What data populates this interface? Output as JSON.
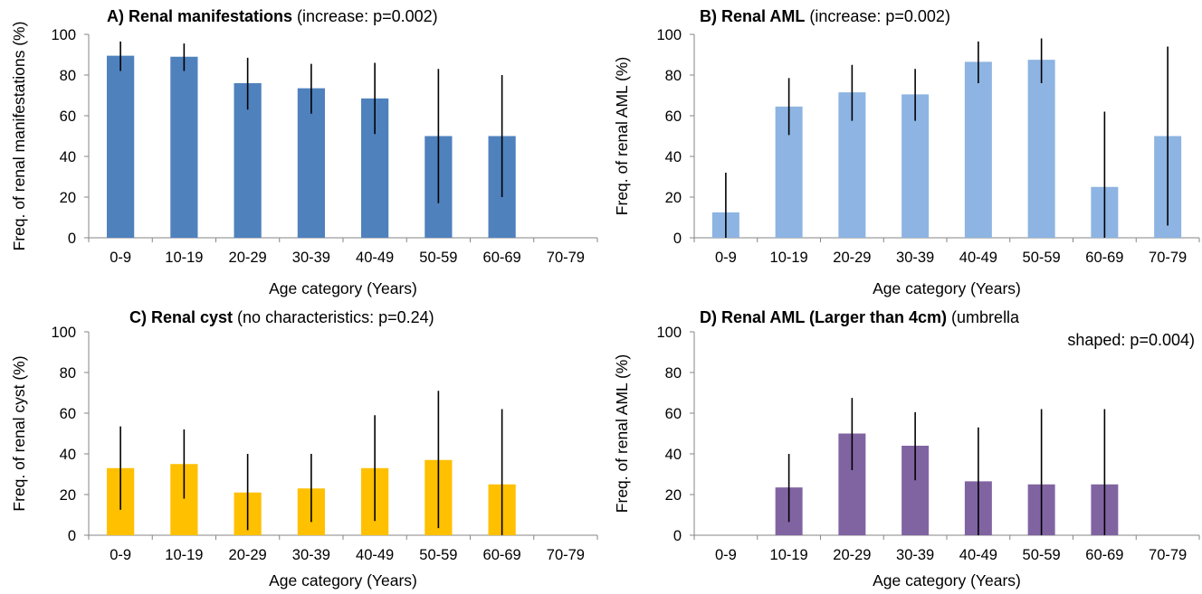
{
  "chart_data": [
    {
      "type": "bar",
      "title_bold": "A) Renal manifestations",
      "title_rest": " (increase: p=0.002)",
      "xlabel": "Age category (Years)",
      "ylabel": "Freq. of renal manifestations (%)",
      "ylim": [
        0,
        100
      ],
      "yticks": [
        0,
        20,
        40,
        60,
        80,
        100
      ],
      "categories": [
        "0-9",
        "10-19",
        "20-29",
        "30-39",
        "40-49",
        "50-59",
        "60-69",
        "70-79"
      ],
      "values": [
        89.5,
        89,
        76,
        73.5,
        68.5,
        50,
        50,
        null
      ],
      "error_high": [
        96.5,
        95.5,
        88.5,
        85.5,
        86,
        83,
        80,
        null
      ],
      "error_low": [
        82,
        82,
        63,
        61,
        51,
        17,
        20,
        null
      ],
      "color": "#4f81bd",
      "grid": false
    },
    {
      "type": "bar",
      "title_bold": "B) Renal AML",
      "title_rest": " (increase: p=0.002)",
      "xlabel": "Age category (Years)",
      "ylabel": "Freq. of renal AML (%)",
      "ylim": [
        0,
        100
      ],
      "yticks": [
        0,
        20,
        40,
        60,
        80,
        100
      ],
      "categories": [
        "0-9",
        "10-19",
        "20-29",
        "30-39",
        "40-49",
        "50-59",
        "60-69",
        "70-79"
      ],
      "values": [
        12.5,
        64.5,
        71.5,
        70.5,
        86.5,
        87.5,
        25,
        50
      ],
      "error_high": [
        32,
        78.5,
        85,
        83,
        96.5,
        98,
        62,
        94
      ],
      "error_low": [
        0,
        50.5,
        57.5,
        57.5,
        76,
        76,
        0,
        6
      ],
      "color": "#8db4e2",
      "grid": false
    },
    {
      "type": "bar",
      "title_bold": "C) Renal cyst",
      "title_rest": " (no characteristics: p=0.24)",
      "xlabel": "Age category (Years)",
      "ylabel": "Freq. of renal cyst (%)",
      "ylim": [
        0,
        100
      ],
      "yticks": [
        0,
        20,
        40,
        60,
        80,
        100
      ],
      "categories": [
        "0-9",
        "10-19",
        "20-29",
        "30-39",
        "40-49",
        "50-59",
        "60-69",
        "70-79"
      ],
      "values": [
        33,
        35,
        21,
        23,
        33,
        37,
        25,
        null
      ],
      "error_high": [
        53.5,
        52,
        40,
        40,
        59,
        71,
        62,
        null
      ],
      "error_low": [
        12.5,
        18,
        2.5,
        6.5,
        7,
        3.5,
        0,
        null
      ],
      "color": "#ffc000",
      "grid": false
    },
    {
      "type": "bar",
      "title_bold": "D) Renal AML (Larger than 4cm)",
      "title_rest": " (umbrella",
      "title_line2": "shaped: p=0.004)",
      "xlabel": "Age category (Years)",
      "ylabel": "Freq. of renal AML (%)",
      "ylim": [
        0,
        100
      ],
      "yticks": [
        0,
        20,
        40,
        60,
        80,
        100
      ],
      "categories": [
        "0-9",
        "10-19",
        "20-29",
        "30-39",
        "40-49",
        "50-59",
        "60-69",
        "70-79"
      ],
      "values": [
        null,
        23.5,
        50,
        44,
        26.5,
        25,
        25,
        null
      ],
      "error_high": [
        null,
        40,
        67.5,
        60.5,
        53,
        62,
        62,
        null
      ],
      "error_low": [
        null,
        6.5,
        32,
        27,
        0,
        0,
        0,
        null
      ],
      "color": "#8064a2",
      "grid": false
    }
  ]
}
